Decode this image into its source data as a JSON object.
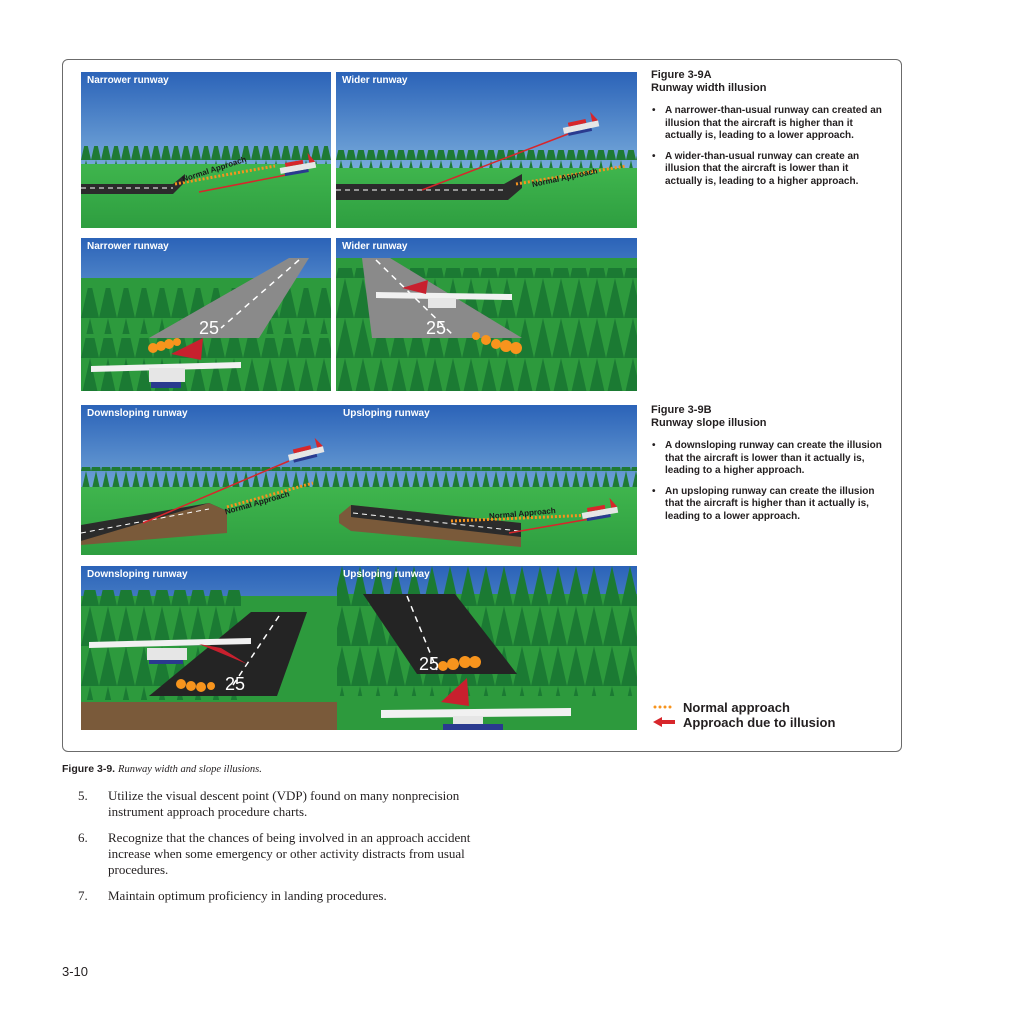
{
  "panels": {
    "p1": "Narrower runway",
    "p2": "Wider runway",
    "p3": "Narrower runway",
    "p4": "Wider runway",
    "p5": "Downsloping runway",
    "p6": "Upsloping runway",
    "p7": "Downsloping runway",
    "p8": "Upsloping runway"
  },
  "annotations": {
    "normal_approach": "Normal Approach",
    "runway_number": "25"
  },
  "fig_a": {
    "number": "Figure 3-9A",
    "title": "Runway width illusion",
    "bullets": [
      "A narrower-than-usual runway can created an illusion that the aircraft is higher than it actually is, leading to a lower approach.",
      "A wider-than-usual runway can create an illusion that the aircraft is lower than it actually is, leading to a higher approach."
    ]
  },
  "fig_b": {
    "number": "Figure 3-9B",
    "title": "Runway slope illusion",
    "bullets": [
      "A downsloping runway can create the illusion that the aircraft is lower than it actually is, leading to a higher approach.",
      "An upsloping runway can create the illusion that the aircraft is higher than it actually is, leading to a lower approach."
    ]
  },
  "legend": {
    "normal": "Normal approach",
    "illusion": "Approach due to illusion"
  },
  "caption": {
    "number": "Figure 3-9.",
    "text": "Runway width and slope illusions."
  },
  "steps": [
    {
      "n": "5.",
      "text": "Utilize the visual descent point (VDP) found on many nonprecision instrument approach procedure charts."
    },
    {
      "n": "6.",
      "text": "Recognize that the chances of being involved in an approach accident increase when some emergency or other activity distracts from usual procedures."
    },
    {
      "n": "7.",
      "text": "Maintain optimum proficiency in landing procedures."
    }
  ],
  "page_number": "3-10",
  "colors": {
    "sky_top": "#2b63b8",
    "sky_bottom": "#9fd0ee",
    "grass": "#39b14a",
    "trees": "#1f7a34",
    "runway": "#2b2b2b",
    "normal_path": "#f7941d",
    "illusion_path": "#d7262b"
  }
}
